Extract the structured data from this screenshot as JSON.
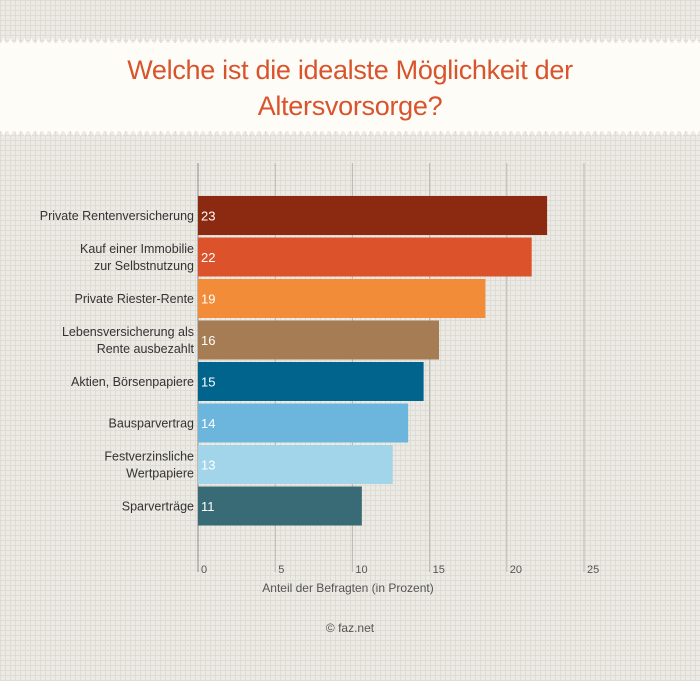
{
  "title": "Welche ist die idealste Möglichkeit der Altersvorsorge?",
  "title_lines": [
    "Welche ist die idealste Möglichkeit der",
    "Altersvorsorge?"
  ],
  "source": "© faz.net",
  "colors": {
    "title": "#d9532c",
    "background": "#eceae4",
    "banner": "#fdfcf6"
  },
  "chart_data": {
    "type": "bar",
    "orientation": "horizontal",
    "categories": [
      [
        "Private Rentenversicherung"
      ],
      [
        "Kauf einer Immobilie",
        "zur Selbstnutzung"
      ],
      [
        "Private Riester-Rente"
      ],
      [
        "Lebensversicherung als",
        "Rente ausbezahlt"
      ],
      [
        "Aktien, Börsenpapiere"
      ],
      [
        "Bausparvertrag"
      ],
      [
        "Festverzinsliche",
        "Wertpapiere"
      ],
      [
        "Sparverträge"
      ]
    ],
    "values": [
      23,
      22,
      19,
      16,
      15,
      14,
      13,
      11
    ],
    "bar_colors": [
      "#8b2a10",
      "#dc522b",
      "#f28c38",
      "#a67c55",
      "#00648c",
      "#6cb6dd",
      "#a2d5e9",
      "#386b75"
    ],
    "label_colors": [
      "#ffffff",
      "#ffffff",
      "#ffffff",
      "#ffffff",
      "#ffffff",
      "#ffffff",
      "#ffffff",
      "#ffffff"
    ],
    "xlabel": "Anteil der Befragten (in Prozent)",
    "ylabel": "",
    "xlim": [
      0,
      25
    ],
    "xticks": [
      0,
      5,
      10,
      15,
      20,
      25
    ],
    "grid": "vertical"
  }
}
